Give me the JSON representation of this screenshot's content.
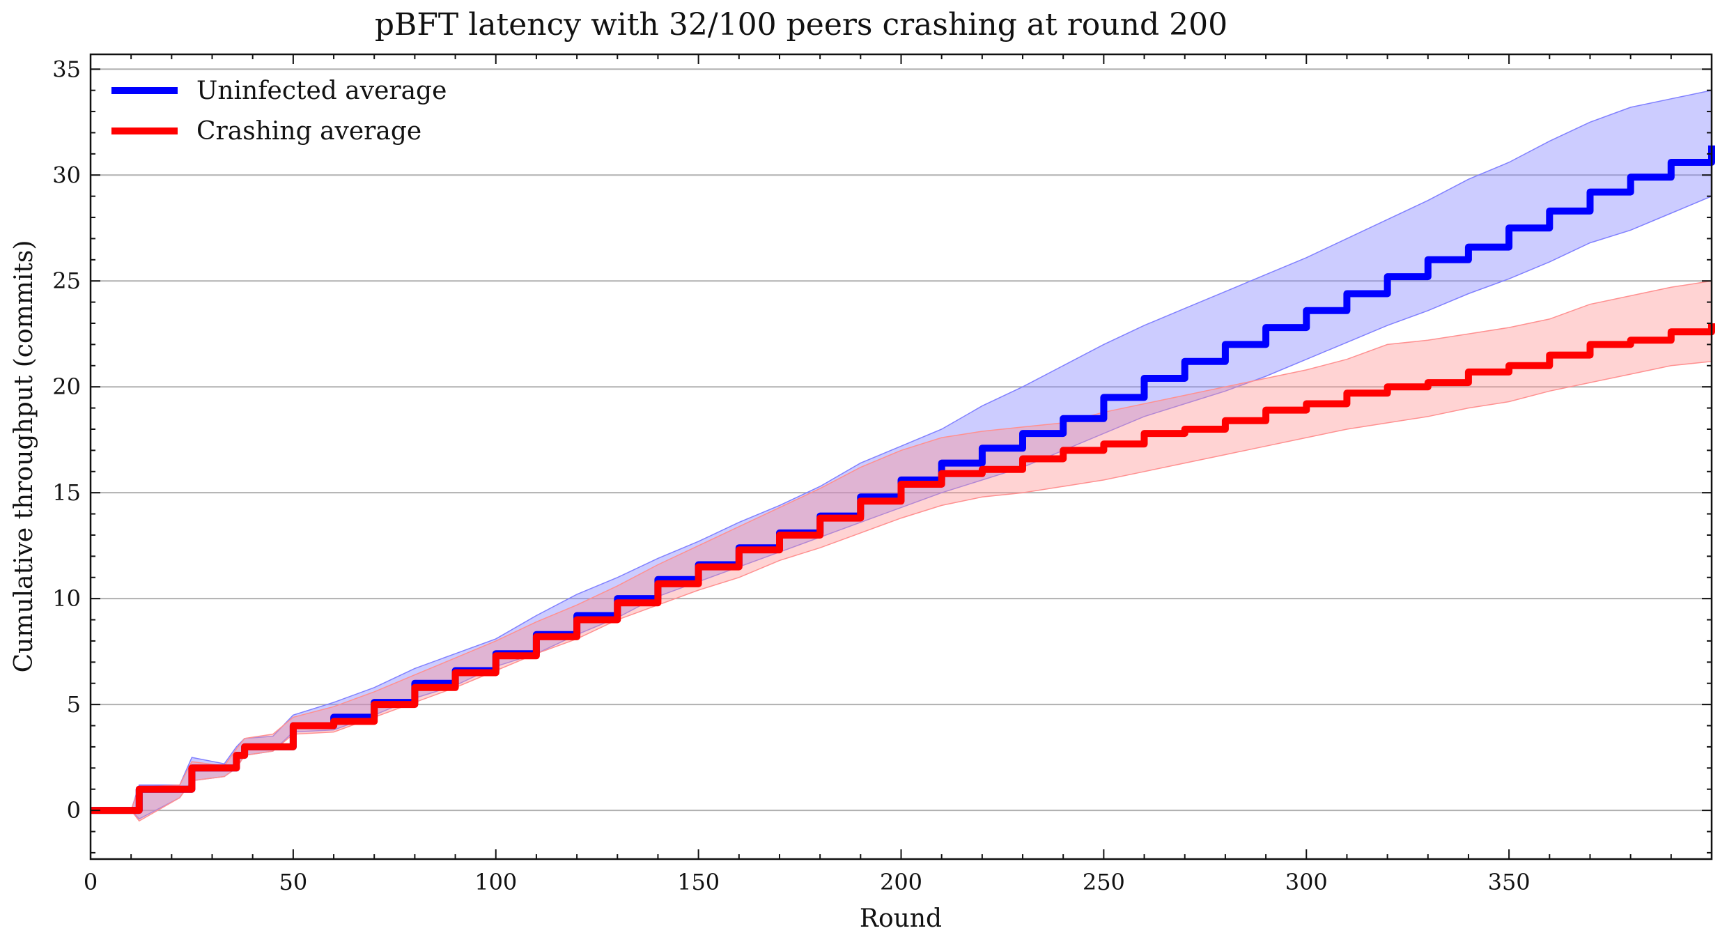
{
  "chart_data": {
    "type": "line",
    "title": "pBFT latency with 32/100 peers crashing at round 200",
    "xlabel": "Round",
    "ylabel": "Cumulative throughput (commits)",
    "xlim": [
      0,
      400
    ],
    "ylim": [
      -2.3,
      35.7
    ],
    "xticks": [
      0,
      50,
      100,
      150,
      200,
      250,
      300,
      350
    ],
    "xtick_labels": [
      "0",
      "50",
      "100",
      "150",
      "200",
      "250",
      "300",
      "350"
    ],
    "yticks": [
      0,
      5,
      10,
      15,
      20,
      25,
      30,
      35
    ],
    "ytick_labels": [
      "0",
      "5",
      "10",
      "15",
      "20",
      "25",
      "30",
      "35"
    ],
    "grid": "horizontal",
    "legend_position": "top-left",
    "series": [
      {
        "name": "Uninfected average",
        "color": "#0000ff",
        "band_color": "#8080ff",
        "x": [
          0,
          10,
          12,
          22,
          25,
          33,
          36,
          38,
          45,
          50,
          60,
          70,
          80,
          90,
          100,
          110,
          120,
          130,
          140,
          150,
          160,
          170,
          180,
          190,
          200,
          210,
          220,
          230,
          240,
          250,
          260,
          270,
          280,
          290,
          300,
          310,
          320,
          330,
          340,
          350,
          360,
          370,
          380,
          390,
          400
        ],
        "values": [
          0,
          0,
          1,
          1,
          2,
          2,
          2.6,
          3,
          3,
          4,
          4.4,
          5.1,
          6,
          6.6,
          7.4,
          8.3,
          9.2,
          10,
          10.9,
          11.6,
          12.4,
          13.1,
          13.9,
          14.8,
          15.6,
          16.4,
          17.1,
          17.8,
          18.5,
          19.5,
          20.4,
          21.2,
          22,
          22.8,
          23.6,
          24.4,
          25.2,
          26,
          26.6,
          27.5,
          28.3,
          29.2,
          29.9,
          30.6,
          31.4
        ],
        "upper": [
          0,
          0,
          1.2,
          1.2,
          2.5,
          2.2,
          3,
          3.4,
          3.5,
          4.5,
          5.1,
          5.8,
          6.7,
          7.4,
          8.1,
          9.2,
          10.2,
          11,
          11.9,
          12.7,
          13.6,
          14.4,
          15.3,
          16.4,
          17.2,
          18,
          19.1,
          20,
          21,
          22,
          22.9,
          23.7,
          24.5,
          25.3,
          26.1,
          27,
          27.9,
          28.8,
          29.8,
          30.6,
          31.6,
          32.5,
          33.2,
          33.6,
          34
        ],
        "lower": [
          0,
          0,
          -0.4,
          0.6,
          1.4,
          1.6,
          2,
          2.6,
          2.8,
          3.7,
          3.8,
          4.5,
          5.3,
          5.9,
          6.8,
          7.4,
          8.3,
          9.1,
          10.1,
          10.8,
          11.5,
          12.2,
          12.9,
          13.6,
          14.3,
          15,
          15.6,
          16.2,
          17,
          17.8,
          18.6,
          19.2,
          19.8,
          20.5,
          21.3,
          22.1,
          22.9,
          23.6,
          24.4,
          25.1,
          25.9,
          26.8,
          27.4,
          28.2,
          29
        ]
      },
      {
        "name": "Crashing average",
        "color": "#ff0000",
        "band_color": "#ff9090",
        "x": [
          0,
          10,
          12,
          22,
          25,
          33,
          36,
          38,
          45,
          50,
          60,
          70,
          80,
          90,
          100,
          110,
          120,
          130,
          140,
          150,
          160,
          170,
          180,
          190,
          200,
          210,
          220,
          230,
          240,
          250,
          260,
          270,
          280,
          290,
          300,
          310,
          320,
          330,
          340,
          350,
          360,
          370,
          380,
          390,
          400
        ],
        "values": [
          0,
          0,
          1,
          1,
          2,
          2,
          2.6,
          3,
          3,
          4,
          4.2,
          5,
          5.8,
          6.5,
          7.3,
          8.2,
          9,
          9.8,
          10.7,
          11.5,
          12.3,
          13,
          13.8,
          14.6,
          15.4,
          15.9,
          16.1,
          16.6,
          17,
          17.3,
          17.8,
          18,
          18.4,
          18.9,
          19.2,
          19.7,
          20,
          20.2,
          20.7,
          21,
          21.5,
          22,
          22.2,
          22.6,
          23
        ],
        "upper": [
          0,
          0,
          1.1,
          1.2,
          2.3,
          2.1,
          2.9,
          3.4,
          3.6,
          4.4,
          4.9,
          5.6,
          6.4,
          7.2,
          8,
          8.9,
          9.7,
          10.6,
          11.6,
          12.5,
          13.4,
          14.3,
          15.2,
          16.2,
          17,
          17.6,
          17.9,
          18.1,
          18.3,
          18.8,
          19.2,
          19.6,
          20,
          20.4,
          20.8,
          21.3,
          22,
          22.2,
          22.5,
          22.8,
          23.2,
          23.9,
          24.3,
          24.7,
          25
        ],
        "lower": [
          0,
          0,
          -0.5,
          0.6,
          1.4,
          1.6,
          2,
          2.6,
          2.8,
          3.6,
          3.7,
          4.4,
          5.1,
          5.8,
          6.6,
          7.4,
          8.1,
          9,
          9.7,
          10.4,
          11,
          11.8,
          12.4,
          13.1,
          13.8,
          14.4,
          14.8,
          15,
          15.3,
          15.6,
          16,
          16.4,
          16.8,
          17.2,
          17.6,
          18,
          18.3,
          18.6,
          19,
          19.3,
          19.8,
          20.2,
          20.6,
          21,
          21.2
        ]
      }
    ]
  }
}
